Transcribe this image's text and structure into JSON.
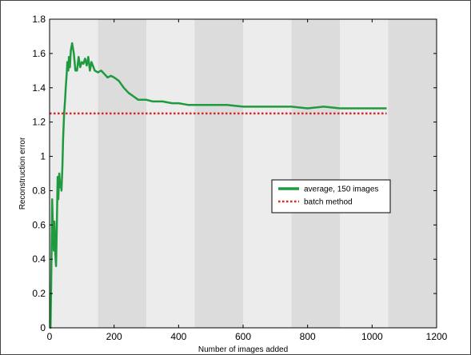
{
  "chart_data": {
    "type": "line",
    "xlabel": "Number of images added",
    "ylabel": "Reconstruction error",
    "xlim": [
      0,
      1200
    ],
    "ylim": [
      0,
      1.8
    ],
    "xticks": [
      0,
      200,
      400,
      600,
      800,
      1000,
      1200
    ],
    "yticks": [
      0,
      0.2,
      0.4,
      0.6,
      0.8,
      1,
      1.2,
      1.4,
      1.6,
      1.8
    ],
    "xtick_labels": [
      "0",
      "200",
      "400",
      "600",
      "800",
      "1000",
      "1200"
    ],
    "ytick_labels": [
      "0",
      "0.2",
      "0.4",
      "0.6",
      "0.8",
      "1",
      "1.2",
      "1.4",
      "1.6",
      "1.8"
    ],
    "grid": false,
    "background_bands": {
      "width": 150,
      "colors": [
        "#ececec",
        "#dcdcdc"
      ]
    },
    "legend_position": "center-right",
    "series": [
      {
        "name": "average, 150 images",
        "color": "#1f9a3e",
        "style": "solid",
        "x": [
          1,
          3,
          5,
          8,
          11,
          13,
          15,
          18,
          20,
          22,
          25,
          27,
          30,
          33,
          35,
          37,
          40,
          42,
          45,
          48,
          50,
          53,
          55,
          58,
          60,
          63,
          66,
          70,
          75,
          80,
          85,
          90,
          95,
          100,
          105,
          110,
          115,
          120,
          125,
          130,
          140,
          150,
          160,
          170,
          180,
          190,
          200,
          215,
          230,
          245,
          260,
          275,
          290,
          300,
          320,
          350,
          380,
          400,
          430,
          450,
          500,
          550,
          600,
          650,
          700,
          750,
          800,
          850,
          900,
          950,
          1000,
          1045
        ],
        "y": [
          0.0,
          0.0,
          0.25,
          0.75,
          0.55,
          0.45,
          0.62,
          0.42,
          0.36,
          0.55,
          0.88,
          0.75,
          0.9,
          0.82,
          0.85,
          0.8,
          0.95,
          1.1,
          1.25,
          1.33,
          1.4,
          1.48,
          1.55,
          1.5,
          1.58,
          1.52,
          1.62,
          1.66,
          1.6,
          1.5,
          1.5,
          1.58,
          1.52,
          1.55,
          1.54,
          1.57,
          1.53,
          1.58,
          1.5,
          1.55,
          1.5,
          1.49,
          1.5,
          1.48,
          1.46,
          1.47,
          1.46,
          1.44,
          1.4,
          1.37,
          1.35,
          1.33,
          1.33,
          1.33,
          1.32,
          1.32,
          1.31,
          1.31,
          1.3,
          1.3,
          1.3,
          1.3,
          1.29,
          1.29,
          1.29,
          1.29,
          1.28,
          1.29,
          1.28,
          1.28,
          1.28,
          1.28
        ]
      },
      {
        "name": "batch method",
        "color": "#d9262b",
        "style": "dotted",
        "x": [
          0,
          1045
        ],
        "y": [
          1.25,
          1.25
        ]
      }
    ]
  }
}
